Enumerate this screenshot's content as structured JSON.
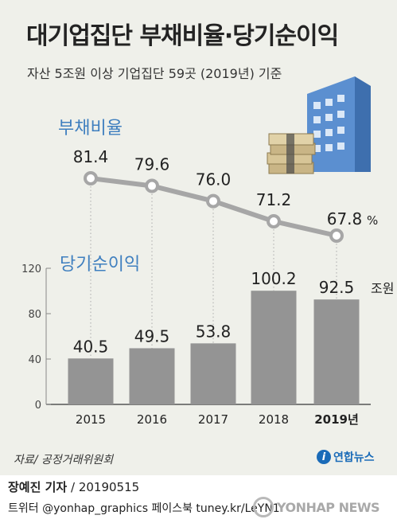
{
  "title": "대기업집단 부채비율·당기순이익",
  "subtitle": "자산 5조원 이상 기업집단 59곳 (2019년) 기준",
  "debt_label": "부채비율",
  "profit_label": "당기순이익",
  "source": "자료/ 공정거래위원회",
  "logo_text": "연합뉴스",
  "author": "장예진 기자",
  "date": " / 20190515",
  "social": "트위터 @yonhap_graphics  페이스북 tuney.kr/LeYN1",
  "watermark": "YONHAP NEWS",
  "colors": {
    "background": "#eff0ea",
    "bar": "#949494",
    "line": "#a6a6a6",
    "accent_label": "#3f7fbf"
  },
  "chart_data": [
    {
      "type": "line",
      "title": "부채비율",
      "unit": "%",
      "x": [
        "2015",
        "2016",
        "2017",
        "2018",
        "2019년"
      ],
      "values": [
        81.4,
        79.6,
        76.0,
        71.2,
        67.8
      ],
      "value_labels": [
        "81.4",
        "79.6",
        "76.0",
        "71.2",
        "67.8"
      ],
      "grid": false
    },
    {
      "type": "bar",
      "title": "당기순이익",
      "unit": "조원",
      "categories": [
        "2015",
        "2016",
        "2017",
        "2018",
        "2019년"
      ],
      "values": [
        40.5,
        49.5,
        53.8,
        100.2,
        92.5
      ],
      "value_labels": [
        "40.5",
        "49.5",
        "53.8",
        "100.2",
        "92.5"
      ],
      "ylim": [
        0,
        120
      ],
      "yticks": [
        "0",
        "40",
        "80",
        "120"
      ],
      "grid": false
    }
  ]
}
